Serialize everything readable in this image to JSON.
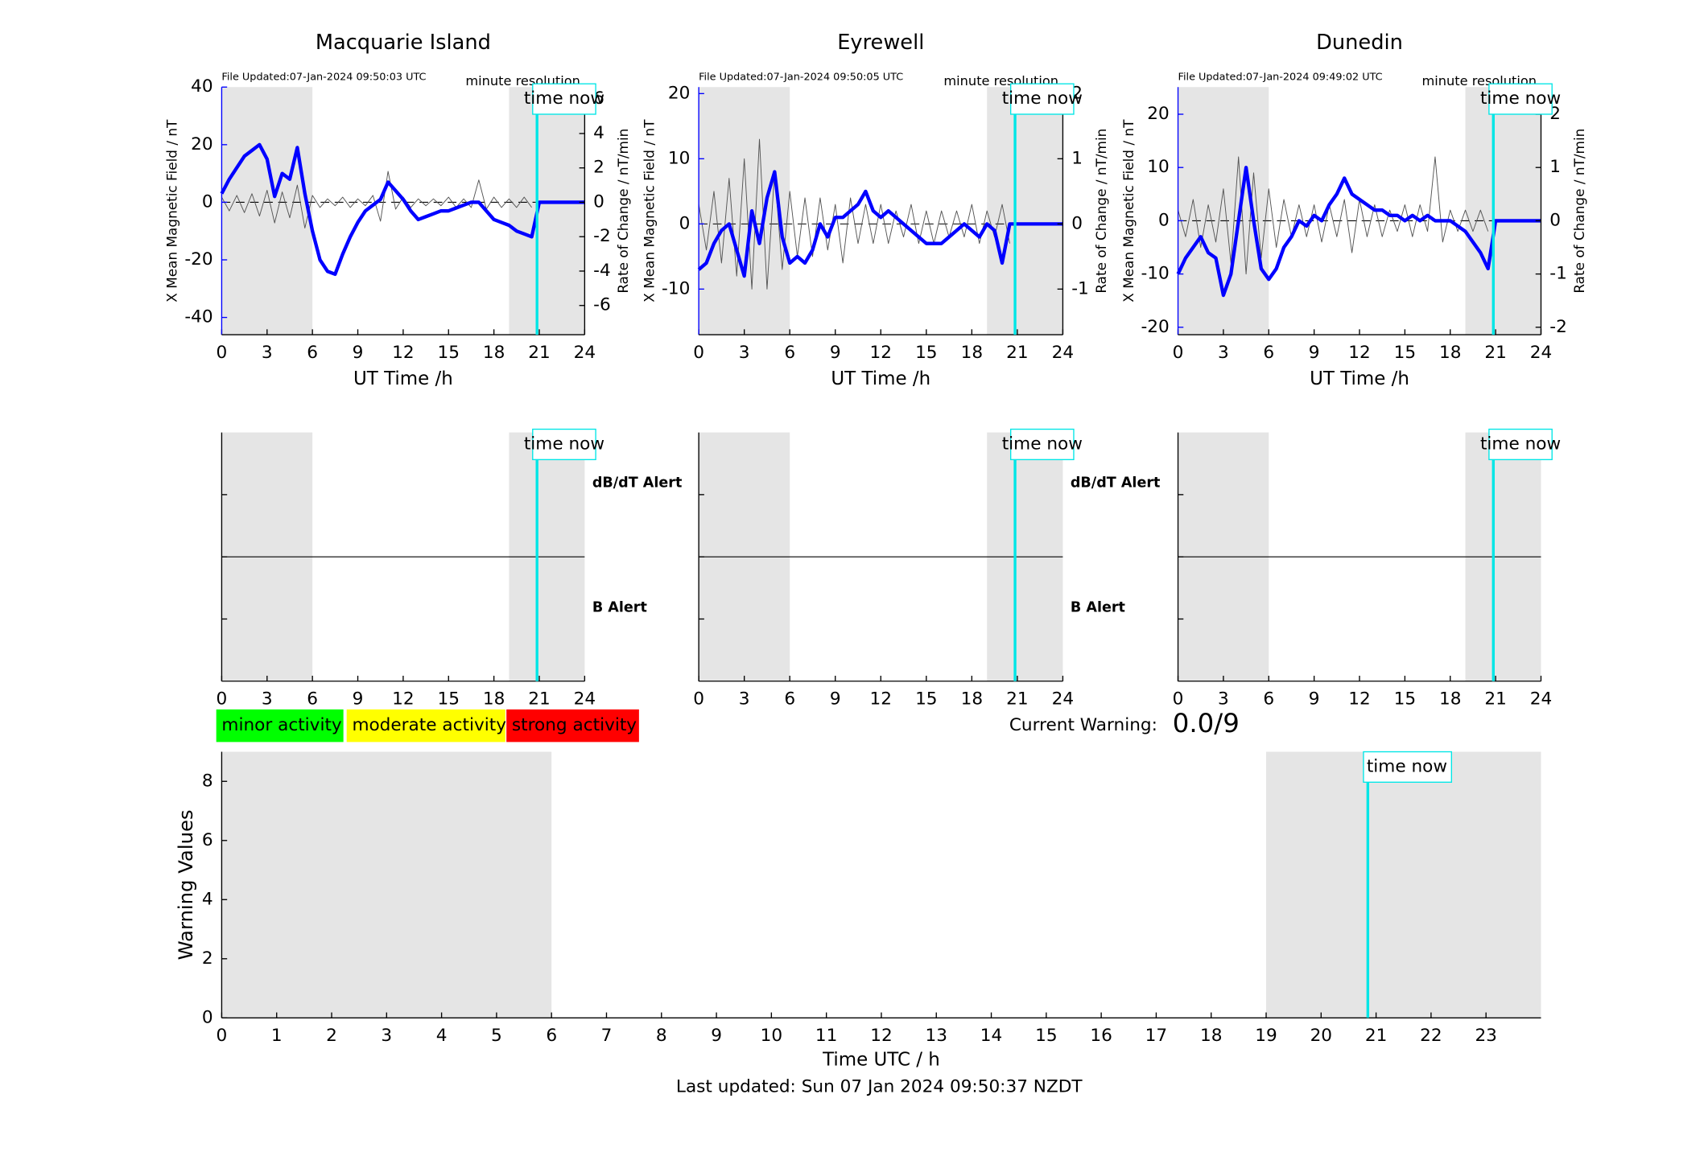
{
  "chart_data": [
    {
      "type": "line",
      "title": "Macquarie Island",
      "file_updated": "File Updated:07-Jan-2024 09:50:03 UTC",
      "resolution_note": "minute resolution",
      "time_now_label": "time now",
      "time_now": 20.85,
      "shaded": [
        [
          0,
          6
        ],
        [
          19,
          24
        ]
      ],
      "xlabel": "UT Time /h",
      "ylabel": "X Mean Magnetic Field / nT",
      "y2label": "Rate of Change / nT/min",
      "xlim": [
        0,
        24
      ],
      "xticks": [
        0,
        3,
        6,
        9,
        12,
        15,
        18,
        21,
        24
      ],
      "ylim": [
        -46,
        40
      ],
      "yticks": [
        -40,
        -20,
        0,
        20,
        40
      ],
      "y2lim": [
        -7.7,
        6.7
      ],
      "y2ticks": [
        -6,
        -4,
        -2,
        0,
        2,
        4,
        6
      ],
      "x": [
        0,
        0.5,
        1,
        1.5,
        2,
        2.5,
        3,
        3.5,
        4,
        4.5,
        5,
        5.5,
        6,
        6.5,
        7,
        7.5,
        8,
        8.5,
        9,
        9.5,
        10,
        10.5,
        11,
        11.5,
        12,
        12.5,
        13,
        13.5,
        14,
        14.5,
        15,
        15.5,
        16,
        16.5,
        17,
        17.5,
        18,
        18.5,
        19,
        19.5,
        20,
        20.5,
        21,
        21.5,
        22,
        22.5,
        23,
        23.5,
        24
      ],
      "series": [
        {
          "color": "#0000ff",
          "values": [
            3,
            8,
            12,
            16,
            18,
            20,
            15,
            2,
            10,
            8,
            19,
            3,
            -10,
            -20,
            -24,
            -25,
            -18,
            -12,
            -7,
            -3,
            -1,
            1,
            7,
            4,
            1,
            -3,
            -6,
            -5,
            -4,
            -3,
            -3,
            -2,
            -1,
            0,
            0,
            -3,
            -6,
            -7,
            -8,
            -10,
            -11,
            -12,
            0,
            0,
            0,
            0,
            0,
            0,
            0
          ]
        },
        {
          "color": "#555555",
          "axis": "y2",
          "values": [
            0.3,
            -0.5,
            0.4,
            -0.6,
            0.5,
            -0.8,
            0.7,
            -1.2,
            0.6,
            -0.9,
            1.0,
            -1.5,
            0.4,
            -0.3,
            0.2,
            -0.2,
            0.3,
            -0.3,
            0.2,
            -0.2,
            0.4,
            -1.1,
            1.8,
            -0.4,
            0.3,
            -0.3,
            0.2,
            -0.2,
            0.2,
            -0.2,
            0.3,
            -0.3,
            0.2,
            -0.3,
            1.3,
            -0.4,
            0.3,
            -0.3,
            0.2,
            -0.3,
            0.3,
            -0.3,
            null,
            null,
            null,
            null,
            null,
            null,
            null
          ]
        }
      ]
    },
    {
      "type": "line",
      "title": "Eyrewell",
      "file_updated": "File Updated:07-Jan-2024 09:50:05 UTC",
      "resolution_note": "minute resolution",
      "time_now_label": "time now",
      "time_now": 20.85,
      "shaded": [
        [
          0,
          6
        ],
        [
          19,
          24
        ]
      ],
      "xlabel": "UT Time /h",
      "ylabel": "X Mean Magnetic Field / nT",
      "y2label": "Rate of Change / nT/min",
      "xlim": [
        0,
        24
      ],
      "xticks": [
        0,
        3,
        6,
        9,
        12,
        15,
        18,
        21,
        24
      ],
      "ylim": [
        -17,
        21
      ],
      "yticks": [
        -10,
        0,
        10,
        20
      ],
      "y2lim": [
        -1.7,
        2.1
      ],
      "y2ticks": [
        -1,
        0,
        1,
        2
      ],
      "x": [
        0,
        0.5,
        1,
        1.5,
        2,
        2.5,
        3,
        3.5,
        4,
        4.5,
        5,
        5.5,
        6,
        6.5,
        7,
        7.5,
        8,
        8.5,
        9,
        9.5,
        10,
        10.5,
        11,
        11.5,
        12,
        12.5,
        13,
        13.5,
        14,
        14.5,
        15,
        15.5,
        16,
        16.5,
        17,
        17.5,
        18,
        18.5,
        19,
        19.5,
        20,
        20.5,
        21,
        21.5,
        22,
        22.5,
        23,
        23.5,
        24
      ],
      "series": [
        {
          "color": "#0000ff",
          "values": [
            -7,
            -6,
            -3,
            -1,
            0,
            -4,
            -8,
            2,
            -3,
            4,
            8,
            -2,
            -6,
            -5,
            -6,
            -4,
            0,
            -2,
            1,
            1,
            2,
            3,
            5,
            2,
            1,
            2,
            1,
            0,
            -1,
            -2,
            -3,
            -3,
            -3,
            -2,
            -1,
            0,
            -1,
            -2,
            0,
            -1,
            -6,
            0,
            0,
            0,
            0,
            0,
            0,
            0,
            0
          ]
        },
        {
          "color": "#555555",
          "axis": "y2",
          "values": [
            0.3,
            -0.4,
            0.5,
            -0.6,
            0.7,
            -0.8,
            1.0,
            -1.0,
            1.3,
            -1.0,
            0.8,
            -0.7,
            0.5,
            -0.5,
            0.4,
            -0.5,
            0.4,
            -0.4,
            0.3,
            -0.6,
            0.4,
            -0.3,
            0.3,
            -0.3,
            0.3,
            -0.3,
            0.2,
            -0.2,
            0.3,
            -0.3,
            0.2,
            -0.3,
            0.2,
            -0.2,
            0.2,
            -0.2,
            0.3,
            -0.3,
            0.2,
            -0.2,
            0.3,
            -0.3,
            null,
            null,
            null,
            null,
            null,
            null,
            null
          ]
        }
      ]
    },
    {
      "type": "line",
      "title": "Dunedin",
      "file_updated": "File Updated:07-Jan-2024 09:49:02 UTC",
      "resolution_note": "minute resolution",
      "time_now_label": "time now",
      "time_now": 20.85,
      "shaded": [
        [
          0,
          6
        ],
        [
          19,
          24
        ]
      ],
      "xlabel": "UT Time /h",
      "ylabel": "X Mean Magnetic Field / nT",
      "y2label": "Rate of Change / nT/min",
      "xlim": [
        0,
        24
      ],
      "xticks": [
        0,
        3,
        6,
        9,
        12,
        15,
        18,
        21,
        24
      ],
      "ylim": [
        -21.4,
        25.1
      ],
      "yticks": [
        -20,
        -10,
        0,
        10,
        20
      ],
      "y2lim": [
        -2.14,
        2.51
      ],
      "y2ticks": [
        -2,
        -1,
        0,
        1,
        2
      ],
      "x": [
        0,
        0.5,
        1,
        1.5,
        2,
        2.5,
        3,
        3.5,
        4,
        4.5,
        5,
        5.5,
        6,
        6.5,
        7,
        7.5,
        8,
        8.5,
        9,
        9.5,
        10,
        10.5,
        11,
        11.5,
        12,
        12.5,
        13,
        13.5,
        14,
        14.5,
        15,
        15.5,
        16,
        16.5,
        17,
        17.5,
        18,
        18.5,
        19,
        19.5,
        20,
        20.5,
        21,
        21.5,
        22,
        22.5,
        23,
        23.5,
        24
      ],
      "series": [
        {
          "color": "#0000ff",
          "values": [
            -10,
            -7,
            -5,
            -3,
            -6,
            -7,
            -14,
            -10,
            0,
            10,
            0,
            -9,
            -11,
            -9,
            -5,
            -3,
            0,
            -1,
            1,
            0,
            3,
            5,
            8,
            5,
            4,
            3,
            2,
            2,
            1,
            1,
            0,
            1,
            0,
            1,
            0,
            0,
            0,
            -1,
            -2,
            -4,
            -6,
            -9,
            0,
            0,
            0,
            0,
            0,
            0,
            0
          ]
        },
        {
          "color": "#555555",
          "axis": "y2",
          "values": [
            0.2,
            -0.3,
            0.4,
            -0.5,
            0.3,
            -0.4,
            0.6,
            -0.8,
            1.2,
            -1.0,
            0.9,
            -0.7,
            0.6,
            -0.5,
            0.4,
            -0.3,
            0.3,
            -0.3,
            0.3,
            -0.4,
            0.3,
            -0.3,
            0.4,
            -0.6,
            0.4,
            -0.3,
            0.3,
            -0.3,
            0.2,
            -0.2,
            0.3,
            -0.3,
            0.3,
            -0.2,
            1.2,
            -0.4,
            0.2,
            -0.2,
            0.2,
            -0.2,
            0.2,
            -0.2,
            null,
            null,
            null,
            null,
            null,
            null,
            null
          ]
        }
      ]
    },
    {
      "type": "alert",
      "time_now_label": "time now",
      "time_now": 20.85,
      "shaded": [
        [
          0,
          6
        ],
        [
          19,
          24
        ]
      ],
      "xlim": [
        0,
        24
      ],
      "xticks": [
        0,
        3,
        6,
        9,
        12,
        15,
        18,
        21,
        24
      ],
      "alert_labels": [
        {
          "text": "dB/dT Alert",
          "color": "#000000"
        },
        {
          "text": "B Alert",
          "color": "#0000ff"
        }
      ]
    },
    {
      "type": "alert",
      "time_now_label": "time now",
      "time_now": 20.85,
      "shaded": [
        [
          0,
          6
        ],
        [
          19,
          24
        ]
      ],
      "xlim": [
        0,
        24
      ],
      "xticks": [
        0,
        3,
        6,
        9,
        12,
        15,
        18,
        21,
        24
      ],
      "alert_labels": [
        {
          "text": "dB/dT Alert",
          "color": "#000000"
        },
        {
          "text": "B Alert",
          "color": "#0000ff"
        }
      ]
    },
    {
      "type": "alert",
      "time_now_label": "time now",
      "time_now": 20.85,
      "shaded": [
        [
          0,
          6
        ],
        [
          19,
          24
        ]
      ],
      "xlim": [
        0,
        24
      ],
      "xticks": [
        0,
        3,
        6,
        9,
        12,
        15,
        18,
        21,
        24
      ]
    },
    {
      "type": "warning",
      "time_now_label": "time now",
      "time_now": 20.85,
      "shaded": [
        [
          0,
          6
        ],
        [
          19,
          24
        ]
      ],
      "xlabel": "Time UTC / h",
      "ylabel": "Warning Values",
      "xlim": [
        0,
        24
      ],
      "xticks": [
        0,
        1,
        2,
        3,
        4,
        5,
        6,
        7,
        8,
        9,
        10,
        11,
        12,
        13,
        14,
        15,
        16,
        17,
        18,
        19,
        20,
        21,
        22,
        23
      ],
      "ylim": [
        0,
        9
      ],
      "yticks": [
        0,
        2,
        4,
        6,
        8
      ],
      "activity_levels": [
        {
          "label": "minor activity",
          "color": "#00ff00"
        },
        {
          "label": "moderate activity",
          "color": "#ffff00"
        },
        {
          "label": "strong activity",
          "color": "#ff0000"
        }
      ],
      "current_warning_label": "Current Warning:",
      "current_warning": "0.0/9",
      "footer": "Last updated: Sun 07 Jan 2024 09:50:37 NZDT"
    }
  ]
}
